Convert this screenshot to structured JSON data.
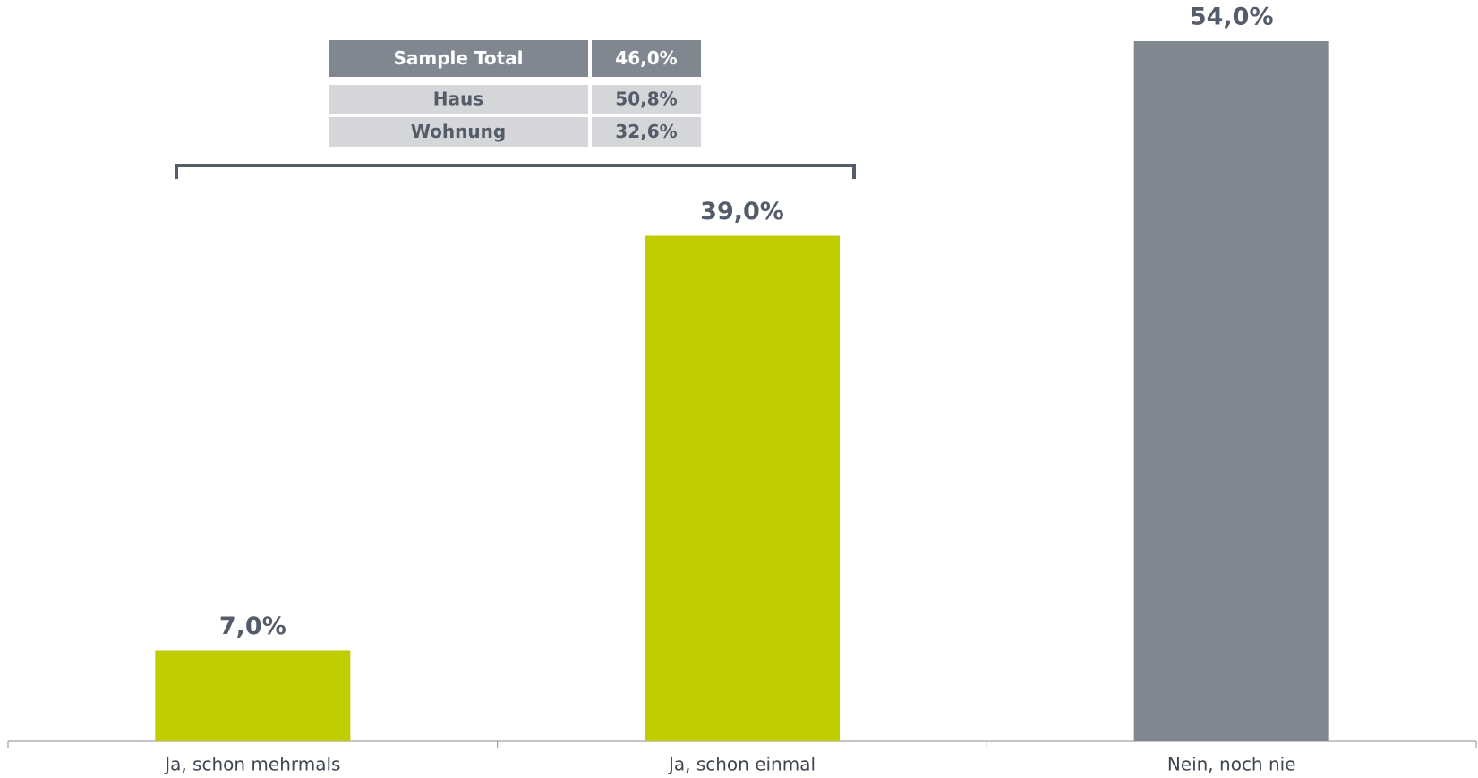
{
  "chart_data": {
    "type": "bar",
    "categories": [
      "Ja, schon mehrmals",
      "Ja, schon einmal",
      "Nein, noch nie"
    ],
    "values": [
      7,
      39,
      54
    ],
    "value_labels": [
      "7,0%",
      "39,0%",
      "54,0%"
    ],
    "colors": [
      "#bfcd00",
      "#bfcd00",
      "#808791"
    ]
  },
  "table": {
    "rows": [
      [
        "Sample Total",
        "46,0%"
      ],
      [
        "Haus",
        "50,8%"
      ],
      [
        "Wohnung",
        "32,6%"
      ]
    ]
  }
}
